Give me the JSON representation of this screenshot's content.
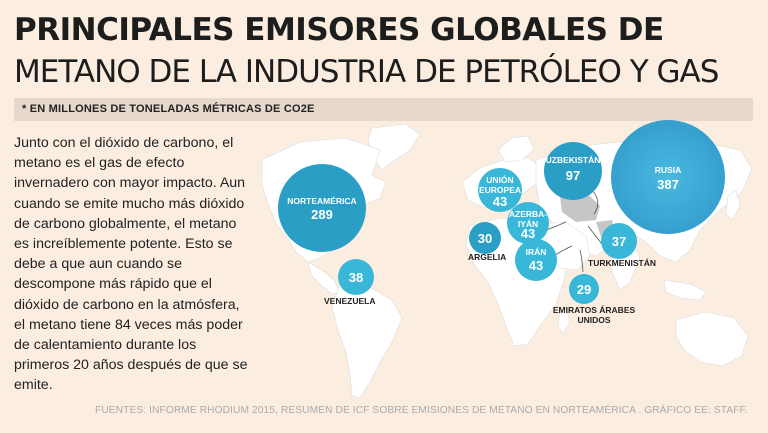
{
  "title": {
    "line1": "PRINCIPALES EMISORES GLOBALES DE",
    "line2": "METANO DE LA INDUSTRIA DE PETRÓLEO Y GAS"
  },
  "unit_note": "* EN MILLONES DE TONELADAS MÉTRICAS DE CO2E",
  "body_text": "Junto con el dióxido de carbono, el metano es el gas de efecto invernadero con mayor impacto. Aun cuando se emite mucho más dióxido de carbono globalmente, el metano es increíblemente potente. Esto se debe a que aun cuando se descompone más rápido que el dióxido de carbono en la atmósfera, el metano tiene 84 veces más poder de calentamiento durante los primeros 20 años después de que se emite.",
  "emitters": [
    {
      "name": "NORTEAMÉRICA",
      "value": "289"
    },
    {
      "name": "RUSIA",
      "value": "387"
    },
    {
      "name": "UZBEKISTÁN",
      "value": "97"
    },
    {
      "name_line1": "UNIÓN",
      "name_line2": "EUROPEA",
      "value": "43"
    },
    {
      "name_line1": "AZERBA-",
      "name_line2": "IYÁN",
      "value": "43"
    },
    {
      "name": "IRÁN",
      "value": "43"
    },
    {
      "name": "ARGELIA",
      "value": "30"
    },
    {
      "name": "TURKMENISTÁN",
      "value": "37"
    },
    {
      "name": "VENEZUELA",
      "value": "38"
    },
    {
      "name_line1": "EMIRATOS ÁRABES",
      "name_line2": "UNIDOS",
      "value": "29"
    }
  ],
  "footer": "FUENTES: INFORME RHODIUM 2015, RESUMEN DE ICF SOBRE EMISIONES DE METANO EN NORTEAMÉRICA . GRÁFICO EE: STAFF.",
  "colors": {
    "background": "#fbeee0",
    "land": "#ffffff",
    "bubble_dark": "#2a9fc4",
    "bubble_light": "#38b8d8"
  }
}
